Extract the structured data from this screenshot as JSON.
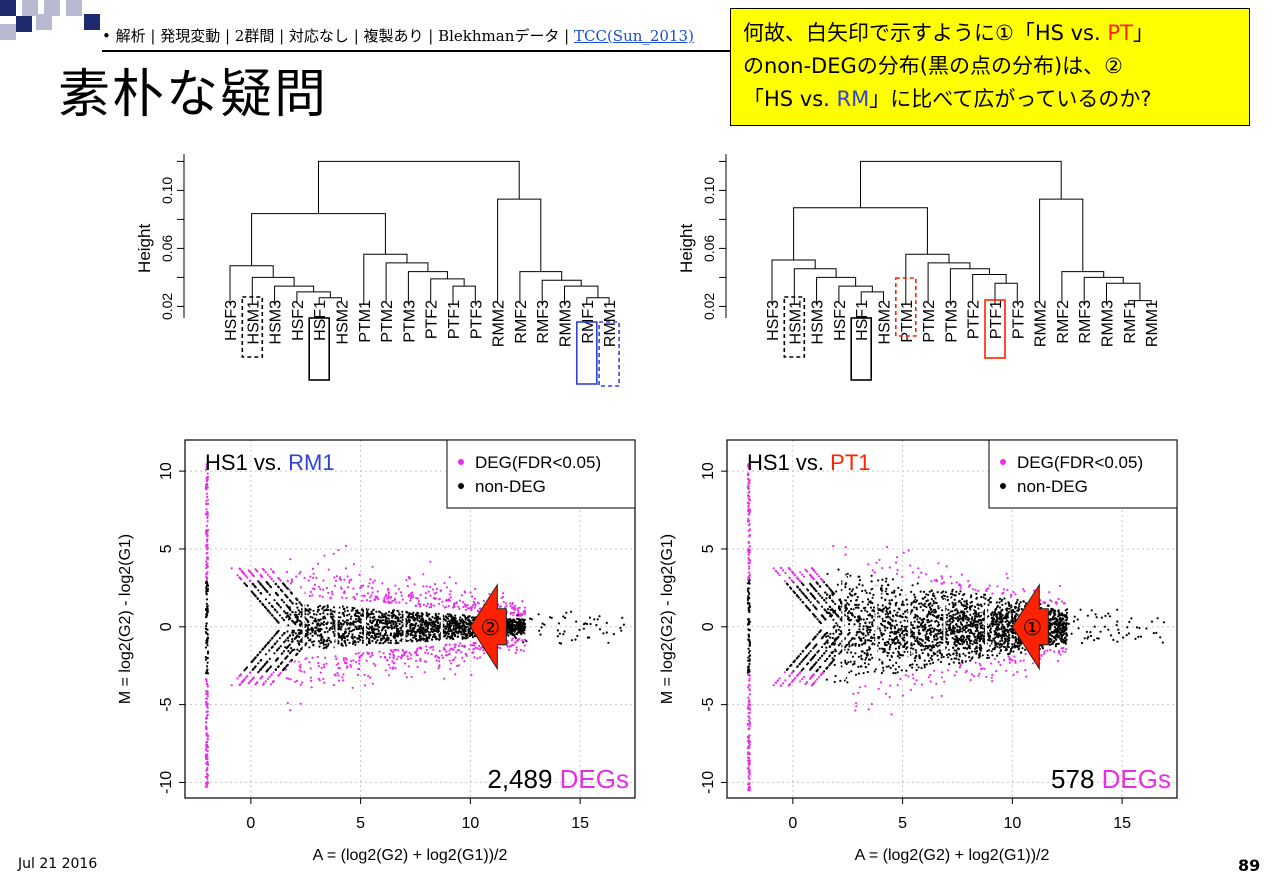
{
  "breadcrumb": {
    "text": "• 解析 | 発現変動 | 2群間 | 対応なし | 複製あり | Blekhmanデータ | ",
    "link": "TCC(Sun_2013)"
  },
  "slide": {
    "title": "素朴な疑問",
    "date": "Jul 21 2016",
    "page_number": "89"
  },
  "callout": {
    "l1a": "何故、白矢印で示すように①「HS vs. ",
    "l1b": "PT",
    "l1c": "」",
    "l2": "のnon-DEGの分布(黒の点の分布)は、②",
    "l3a": "「HS vs. ",
    "l3b": "RM",
    "l3c": "」に比べて広がっているのか?"
  },
  "dendrograms": {
    "height_label": "Height",
    "ticks": [
      "0.02",
      "0.06",
      "0.10"
    ],
    "left_leaves": [
      "HSF3",
      "HSM1",
      "HSM3",
      "HSF2",
      "HSF1",
      "HSM2",
      "PTM1",
      "PTM2",
      "PTM3",
      "PTF2",
      "PTF1",
      "PTF3",
      "RMM2",
      "RMF2",
      "RMF3",
      "RMM3",
      "RMF1",
      "RMM1"
    ],
    "right_leaves": [
      "HSF3",
      "HSM1",
      "HSM3",
      "HSF2",
      "HSF1",
      "HSM2",
      "PTM1",
      "PTM2",
      "PTM3",
      "PTF2",
      "PTF1",
      "PTF3",
      "RMM2",
      "RMF2",
      "RMF3",
      "RMM3",
      "RMF1",
      "RMM1"
    ]
  },
  "colors": {
    "deg": "#e82ee8",
    "non_deg": "#000000",
    "red": "#ff2200",
    "blue": "#2f43d6",
    "arrow": "#ff2200",
    "callout_bg": "#ffff00"
  },
  "chart_data": [
    {
      "type": "scatter",
      "title_prefix": "HS1 vs. ",
      "title_highlight": "RM1",
      "xlabel": "A = (log2(G2) + log2(G1))/2",
      "ylabel": "M = log2(G2) - log2(G1)",
      "xlim": [
        -3,
        17.5
      ],
      "ylim": [
        -11,
        12
      ],
      "xticks": [
        "0",
        "5",
        "10",
        "15"
      ],
      "yticks": [
        "-10",
        "-5",
        "0",
        "5",
        "10"
      ],
      "legend": [
        "DEG(FDR<0.05)",
        "non-DEG"
      ],
      "legend_position": "top-right",
      "grid": true,
      "deg_count": "2,489",
      "deg_label": "DEGs",
      "marker_label": "②"
    },
    {
      "type": "scatter",
      "title_prefix": "HS1 vs. ",
      "title_highlight": "PT1",
      "xlabel": "A = (log2(G2) + log2(G1))/2",
      "ylabel": "M = log2(G2) - log2(G1)",
      "xlim": [
        -3,
        17.5
      ],
      "ylim": [
        -11,
        12
      ],
      "xticks": [
        "0",
        "5",
        "10",
        "15"
      ],
      "yticks": [
        "-10",
        "-5",
        "0",
        "5",
        "10"
      ],
      "legend": [
        "DEG(FDR<0.05)",
        "non-DEG"
      ],
      "legend_position": "top-right",
      "grid": true,
      "deg_count": "578",
      "deg_label": "DEGs",
      "marker_label": "①"
    }
  ]
}
